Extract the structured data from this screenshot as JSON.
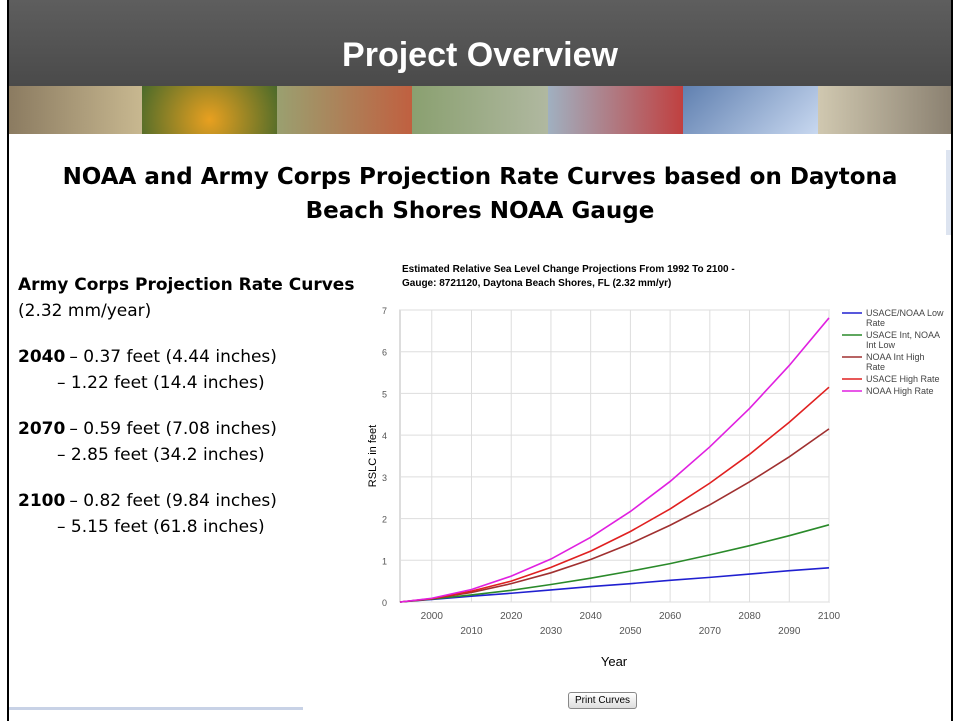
{
  "header": {
    "title": "Project Overview"
  },
  "subtitle": "NOAA and Army Corps Projection Rate Curves based on Daytona Beach Shores  NOAA Gauge",
  "summary": {
    "heading": "Army Corps Projection Rate Curves",
    "rate": "(2.32 mm/year)",
    "projections": [
      {
        "year": "2040",
        "low": "– 0.37 feet (4.44 inches)",
        "high": "– 1.22 feet (14.4 inches)"
      },
      {
        "year": "2070",
        "low": "– 0.59 feet (7.08 inches)",
        "high": "– 2.85 feet (34.2 inches)"
      },
      {
        "year": "2100",
        "low": "– 0.82 feet (9.84 inches)",
        "high": "– 5.15 feet (61.8 inches)"
      }
    ]
  },
  "button": "Print Curves",
  "chart_data": {
    "type": "line",
    "title": "Estimated Relative Sea Level Change Projections From 1992 To 2100 -",
    "subtitle": "Gauge: 8721120, Daytona Beach Shores, FL (2.32 mm/yr)",
    "x_label": "Year",
    "y_label": "RSLC in feet",
    "x": [
      1992,
      2000,
      2010,
      2020,
      2030,
      2040,
      2050,
      2060,
      2070,
      2080,
      2090,
      2100
    ],
    "xlim": [
      1992,
      2100
    ],
    "xticks": [
      2000,
      2010,
      2020,
      2030,
      2040,
      2050,
      2060,
      2070,
      2080,
      2090,
      2100
    ],
    "ylim": [
      0,
      7
    ],
    "yticks": [
      0,
      1,
      2,
      3,
      4,
      5,
      6,
      7
    ],
    "grid": true,
    "series": [
      {
        "name": "USACE/NOAA Low Rate",
        "color": "#2020d0",
        "values": [
          0,
          0.06,
          0.14,
          0.21,
          0.29,
          0.37,
          0.44,
          0.52,
          0.59,
          0.67,
          0.75,
          0.82
        ]
      },
      {
        "name": "USACE Int, NOAA Int Low",
        "color": "#2a8a2a",
        "values": [
          0,
          0.07,
          0.17,
          0.28,
          0.42,
          0.57,
          0.74,
          0.92,
          1.13,
          1.35,
          1.59,
          1.85
        ]
      },
      {
        "name": "NOAA Int High Rate",
        "color": "#a03030",
        "values": [
          0,
          0.08,
          0.23,
          0.44,
          0.7,
          1.02,
          1.4,
          1.84,
          2.33,
          2.88,
          3.48,
          4.15
        ]
      },
      {
        "name": "USACE High Rate",
        "color": "#e02020",
        "values": [
          0,
          0.08,
          0.26,
          0.5,
          0.83,
          1.22,
          1.69,
          2.23,
          2.85,
          3.54,
          4.31,
          5.15
        ]
      },
      {
        "name": "NOAA High Rate",
        "color": "#e020e0",
        "values": [
          0,
          0.09,
          0.3,
          0.62,
          1.03,
          1.55,
          2.17,
          2.89,
          3.72,
          4.64,
          5.67,
          6.81
        ]
      }
    ]
  }
}
